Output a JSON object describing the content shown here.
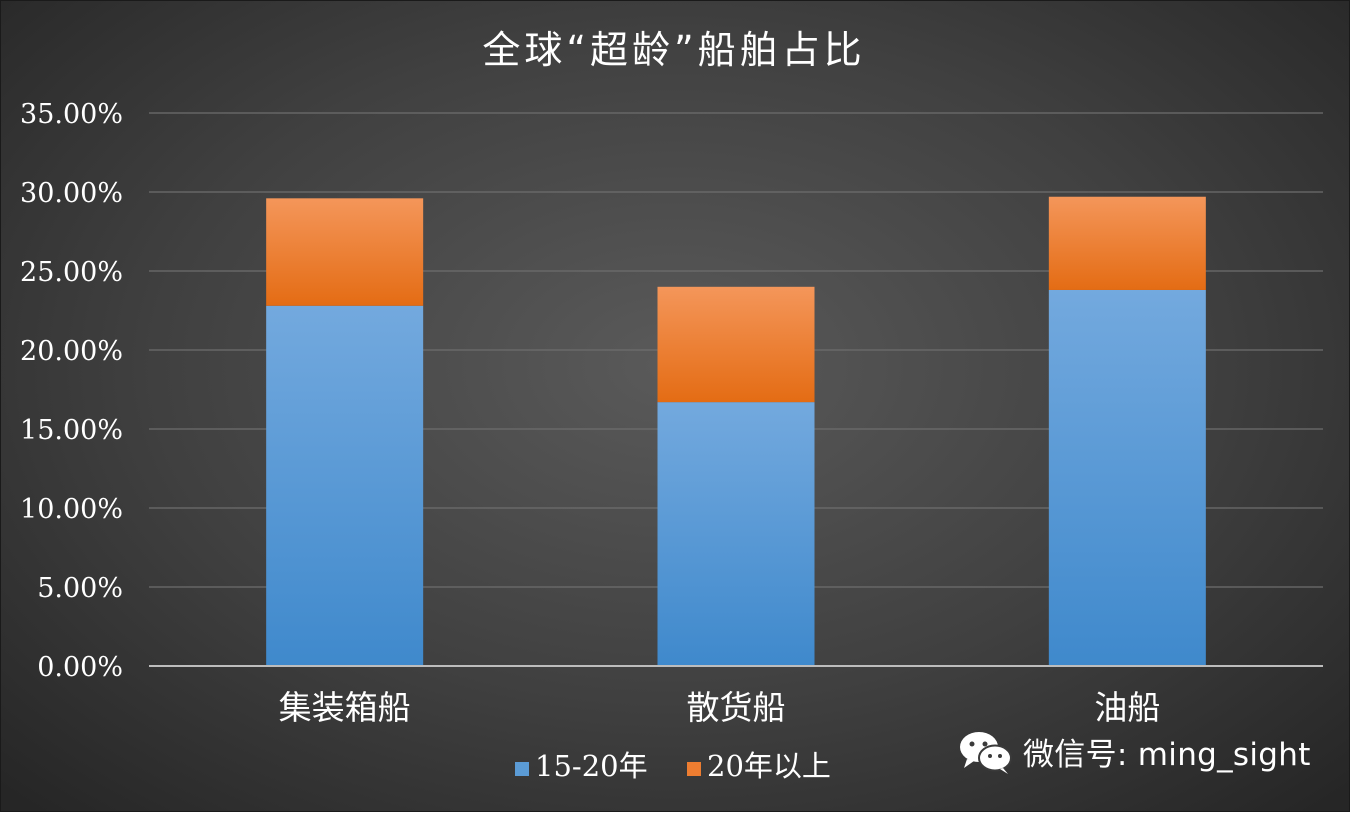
{
  "chart_data": {
    "type": "bar",
    "stacked": true,
    "title": "全球“超龄”船舶占比",
    "categories": [
      "集装箱船",
      "散货船",
      "油船"
    ],
    "series": [
      {
        "name": "15-20年",
        "values": [
          22.8,
          16.7,
          23.8
        ],
        "color": "#5b9bd5"
      },
      {
        "name": "20年以上",
        "values": [
          6.8,
          7.3,
          5.9
        ],
        "color": "#ed7d31"
      }
    ],
    "ylim": [
      0,
      35
    ],
    "ytick_step": 5,
    "y_tick_labels": [
      "0.00%",
      "5.00%",
      "10.00%",
      "15.00%",
      "20.00%",
      "25.00%",
      "30.00%",
      "35.00%"
    ],
    "xlabel": "",
    "ylabel": "",
    "grid": true,
    "legend_position": "bottom",
    "background": "#404040"
  },
  "watermark": {
    "text": "微信号: ming_sight",
    "icon": "wechat-icon"
  }
}
